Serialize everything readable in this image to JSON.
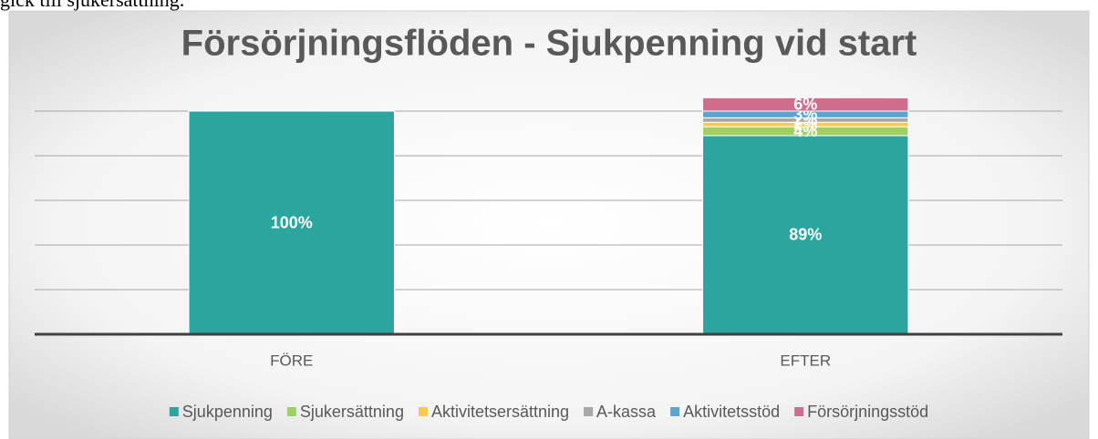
{
  "context_text": "gick till sjukersättning.",
  "chart_data": {
    "type": "bar",
    "stacked": true,
    "title": "Försörjningsflöden - Sjukpenning vid start",
    "categories": [
      "FÖRE",
      "EFTER"
    ],
    "series": [
      {
        "name": "Sjukpenning",
        "color": "#2ba69f",
        "values": [
          100,
          89
        ],
        "value_labels": [
          "100%",
          "89%"
        ]
      },
      {
        "name": "Sjukersättning",
        "color": "#9fd064",
        "values": [
          null,
          4
        ],
        "value_labels": [
          null,
          "4%"
        ]
      },
      {
        "name": "Aktivitetsersättning",
        "color": "#fdc94c",
        "values": [
          null,
          2
        ],
        "value_labels": [
          null,
          "2%"
        ]
      },
      {
        "name": "A-kassa",
        "color": "#a8a8a8",
        "values": [
          null,
          2
        ],
        "value_labels": [
          null,
          "2%"
        ]
      },
      {
        "name": "Aktivitetsstöd",
        "color": "#5ba5d0",
        "values": [
          null,
          3
        ],
        "value_labels": [
          null,
          "3%"
        ]
      },
      {
        "name": "Försörjningsstöd",
        "color": "#d06d8d",
        "values": [
          null,
          6
        ],
        "value_labels": [
          null,
          "6%"
        ]
      }
    ],
    "ylim": [
      0,
      100
    ],
    "yticks": [
      0,
      20,
      40,
      60,
      80,
      100
    ],
    "grid": true,
    "legend": "bottom"
  }
}
